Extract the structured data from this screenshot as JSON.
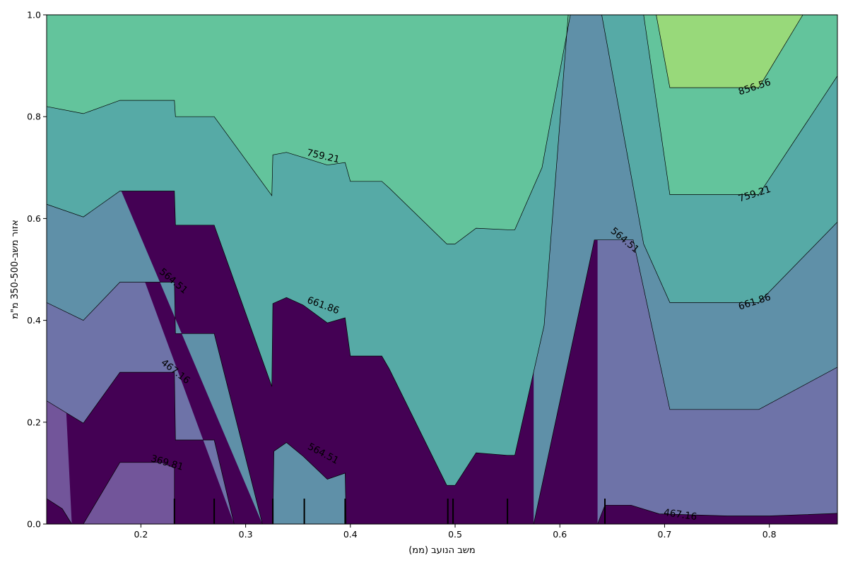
{
  "chart_data": {
    "type": "contour",
    "xlabel": "משב הנועב (ממ)",
    "ylabel": "אזור משב-350-500 מ\"מ",
    "xlim": [
      0.11,
      0.865
    ],
    "ylim": [
      0.0,
      1.0
    ],
    "x_ticks": [
      0.2,
      0.3,
      0.4,
      0.5,
      0.6,
      0.7,
      0.8
    ],
    "x_tick_labels": [
      "0.2",
      "0.3",
      "0.4",
      "0.5",
      "0.6",
      "0.7",
      "0.8"
    ],
    "y_ticks": [
      0.0,
      0.2,
      0.4,
      0.6,
      0.8,
      1.0
    ],
    "y_tick_labels": [
      "0.0",
      "0.2",
      "0.4",
      "0.6",
      "0.8",
      "1.0"
    ],
    "levels": [
      369.81,
      467.16,
      564.51,
      661.86,
      759.21,
      856.56
    ],
    "level_colors": [
      "#440154",
      "#72559a",
      "#6e73a8",
      "#5f90a8",
      "#56aaa6",
      "#63c49c",
      "#98d97a",
      "#dbe852"
    ],
    "contour_lines": [
      {
        "level": 369.81,
        "segments": [
          [
            [
              0.11,
              0.05
            ],
            [
              0.125,
              0.03
            ],
            [
              0.134,
              0.0
            ]
          ],
          [
            [
              0.145,
              0.0
            ],
            [
              0.18,
              0.121
            ],
            [
              0.22,
              0.121
            ],
            [
              0.232,
              0.11
            ],
            [
              0.232,
              0.0
            ]
          ]
        ]
      },
      {
        "level": 467.16,
        "segments": [
          [
            [
              0.11,
              0.242
            ],
            [
              0.145,
              0.198
            ],
            [
              0.18,
              0.298
            ],
            [
              0.232,
              0.298
            ],
            [
              0.233,
              0.165
            ],
            [
              0.27,
              0.165
            ],
            [
              0.289,
              0.0
            ]
          ],
          [
            [
              0.636,
              0.0
            ],
            [
              0.643,
              0.037
            ],
            [
              0.668,
              0.037
            ],
            [
              0.695,
              0.02
            ],
            [
              0.76,
              0.016
            ],
            [
              0.8,
              0.016
            ],
            [
              0.865,
              0.021
            ]
          ]
        ]
      },
      {
        "level": 564.51,
        "segments": [
          [
            [
              0.11,
              0.435
            ],
            [
              0.145,
              0.4
            ],
            [
              0.18,
              0.475
            ],
            [
              0.232,
              0.475
            ],
            [
              0.233,
              0.374
            ],
            [
              0.27,
              0.374
            ],
            [
              0.316,
              0.0
            ]
          ],
          [
            [
              0.326,
              0.0
            ],
            [
              0.327,
              0.143
            ],
            [
              0.339,
              0.16
            ],
            [
              0.355,
              0.133
            ],
            [
              0.378,
              0.088
            ],
            [
              0.395,
              0.1
            ],
            [
              0.396,
              0.0
            ]
          ],
          [
            [
              0.575,
              0.0
            ],
            [
              0.633,
              0.558
            ],
            [
              0.67,
              0.558
            ],
            [
              0.705,
              0.225
            ],
            [
              0.79,
              0.225
            ],
            [
              0.865,
              0.308
            ]
          ]
        ]
      },
      {
        "level": 661.86,
        "segments": [
          [
            [
              0.11,
              0.628
            ],
            [
              0.145,
              0.603
            ],
            [
              0.18,
              0.654
            ],
            [
              0.232,
              0.654
            ],
            [
              0.233,
              0.587
            ],
            [
              0.27,
              0.587
            ],
            [
              0.325,
              0.27
            ],
            [
              0.326,
              0.433
            ],
            [
              0.339,
              0.445
            ],
            [
              0.355,
              0.43
            ],
            [
              0.378,
              0.395
            ],
            [
              0.395,
              0.405
            ],
            [
              0.4,
              0.33
            ],
            [
              0.43,
              0.33
            ],
            [
              0.437,
              0.305
            ],
            [
              0.492,
              0.076
            ],
            [
              0.5,
              0.076
            ],
            [
              0.52,
              0.14
            ],
            [
              0.55,
              0.135
            ],
            [
              0.557,
              0.135
            ],
            [
              0.585,
              0.39
            ],
            [
              0.608,
              1.0
            ]
          ],
          [
            [
              0.64,
              1.0
            ],
            [
              0.68,
              0.55
            ],
            [
              0.705,
              0.435
            ],
            [
              0.79,
              0.435
            ],
            [
              0.865,
              0.593
            ]
          ]
        ]
      },
      {
        "level": 759.21,
        "segments": [
          [
            [
              0.11,
              0.82
            ],
            [
              0.145,
              0.806
            ],
            [
              0.18,
              0.832
            ],
            [
              0.232,
              0.832
            ],
            [
              0.233,
              0.8
            ],
            [
              0.27,
              0.8
            ],
            [
              0.325,
              0.645
            ],
            [
              0.326,
              0.725
            ],
            [
              0.339,
              0.73
            ],
            [
              0.355,
              0.72
            ],
            [
              0.378,
              0.705
            ],
            [
              0.395,
              0.71
            ],
            [
              0.4,
              0.673
            ],
            [
              0.43,
              0.673
            ],
            [
              0.437,
              0.66
            ],
            [
              0.492,
              0.55
            ],
            [
              0.5,
              0.55
            ],
            [
              0.52,
              0.581
            ],
            [
              0.55,
              0.578
            ],
            [
              0.557,
              0.578
            ],
            [
              0.583,
              0.7
            ],
            [
              0.61,
              1.0
            ]
          ],
          [
            [
              0.68,
              1.0
            ],
            [
              0.705,
              0.647
            ],
            [
              0.79,
              0.647
            ],
            [
              0.865,
              0.88
            ]
          ]
        ]
      },
      {
        "level": 856.56,
        "segments": [
          [
            [
              0.692,
              1.0
            ],
            [
              0.705,
              0.857
            ],
            [
              0.79,
              0.857
            ],
            [
              0.832,
              1.0
            ]
          ]
        ]
      }
    ],
    "contour_labels": [
      {
        "text": "369.81",
        "x": 0.225,
        "y": 0.12,
        "rotation": 16
      },
      {
        "text": "467.16",
        "x": 0.233,
        "y": 0.299,
        "rotation": 38
      },
      {
        "text": "564.51",
        "x": 0.231,
        "y": 0.477,
        "rotation": 40
      },
      {
        "text": "759.21",
        "x": 0.374,
        "y": 0.722,
        "rotation": 13
      },
      {
        "text": "661.86",
        "x": 0.374,
        "y": 0.429,
        "rotation": 20
      },
      {
        "text": "564.51",
        "x": 0.374,
        "y": 0.138,
        "rotation": 28
      },
      {
        "text": "564.51",
        "x": 0.662,
        "y": 0.557,
        "rotation": 40
      },
      {
        "text": "467.16",
        "x": 0.715,
        "y": 0.018,
        "rotation": 8
      },
      {
        "text": "856.56",
        "x": 0.786,
        "y": 0.858,
        "rotation": -18
      },
      {
        "text": "759.21",
        "x": 0.786,
        "y": 0.648,
        "rotation": -18
      },
      {
        "text": "661.86",
        "x": 0.786,
        "y": 0.436,
        "rotation": -18
      }
    ],
    "rug_x": [
      0.232,
      0.27,
      0.326,
      0.356,
      0.395,
      0.493,
      0.498,
      0.55,
      0.643
    ]
  }
}
